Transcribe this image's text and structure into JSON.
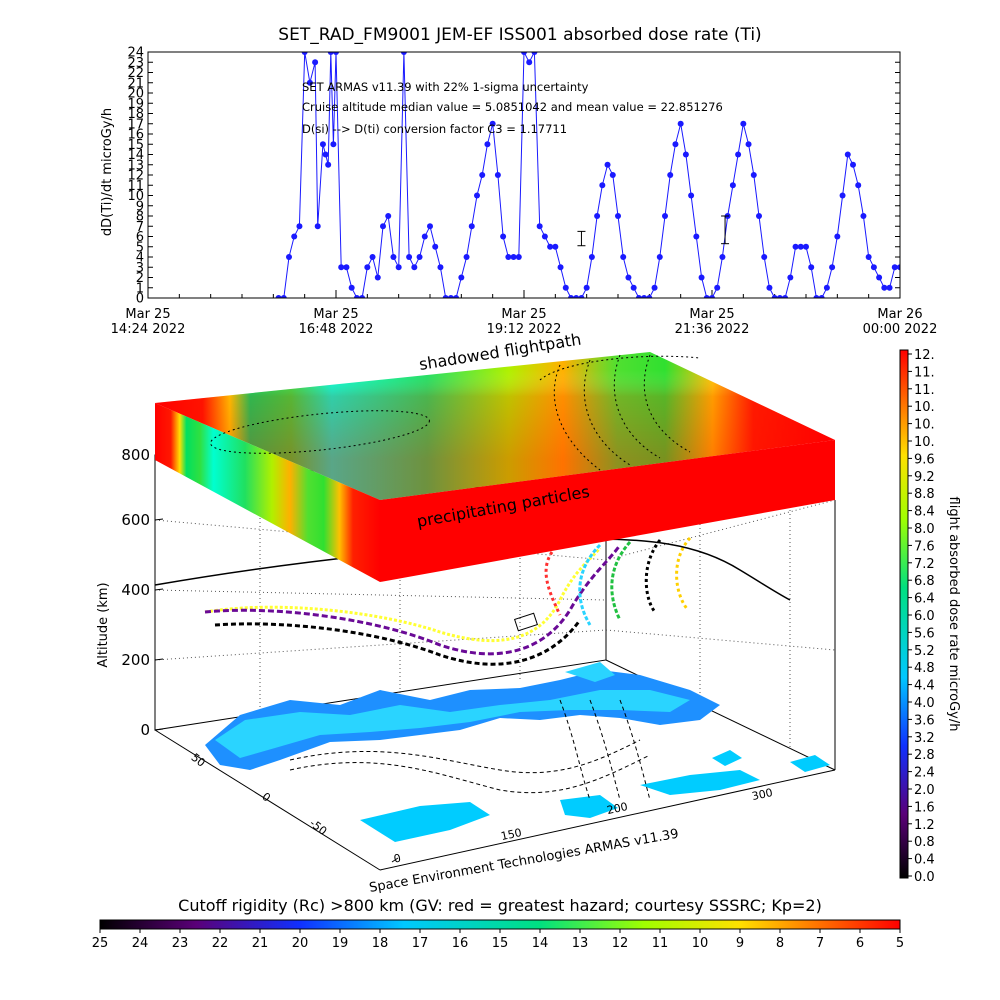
{
  "colors": {
    "series": "#1a1aff",
    "frame": "#000000",
    "background": "#ffffff"
  },
  "chart_data": [
    {
      "type": "line",
      "title": "SET_RAD_FM9001  JEM-EF ISS001 absorbed dose rate (Ti)",
      "ylabel": "dD(Ti)/dt microGy/h",
      "ylim": [
        0,
        24
      ],
      "yticks": [
        "0",
        "1",
        "2",
        "3",
        "4",
        "5",
        "6",
        "7",
        "8",
        "9",
        "10",
        "11",
        "12",
        "13",
        "14",
        "15",
        "16",
        "17",
        "18",
        "19",
        "20",
        "21",
        "22",
        "23",
        "24"
      ],
      "xticks": [
        {
          "line1": "Mar 25",
          "line2": "14:24 2022",
          "t": 0
        },
        {
          "line1": "Mar 25",
          "line2": "16:48 2022",
          "t": 144
        },
        {
          "line1": "Mar 25",
          "line2": "19:12 2022",
          "t": 288
        },
        {
          "line1": "Mar 25",
          "line2": "21:36 2022",
          "t": 432
        },
        {
          "line1": "Mar 26",
          "line2": "00:00 2022",
          "t": 576
        }
      ],
      "annotations": [
        "SET ARMAS v11.39 with 22% 1-sigma uncertainty",
        "Cruise altitude median value = 5.0851042 and mean value = 22.851276",
        "D(si) --> D(ti) conversion factor C3 = 1.17711"
      ],
      "series": [
        {
          "x": [
            100,
            104,
            108,
            112,
            116,
            120,
            124,
            128,
            130,
            134,
            136,
            138,
            140,
            142,
            144,
            148,
            152,
            156,
            160,
            164,
            168,
            172,
            176,
            180,
            184,
            188,
            192,
            196,
            200,
            204,
            208,
            212,
            216,
            220,
            224,
            228,
            232,
            236,
            240,
            244,
            248,
            252,
            256,
            260,
            264,
            268,
            272,
            276,
            280,
            284,
            288,
            292,
            296,
            300,
            304,
            308,
            312,
            316,
            320,
            324,
            328,
            332,
            336,
            340,
            344,
            348,
            352,
            356,
            360,
            364,
            368,
            372,
            376,
            380,
            384,
            388,
            392,
            396,
            400,
            404,
            408,
            412,
            416,
            420,
            424,
            428,
            432,
            436,
            440,
            444,
            448,
            452,
            456,
            460,
            464,
            468,
            472,
            476,
            480,
            484,
            488,
            492,
            496,
            500,
            504,
            508,
            512,
            516,
            520,
            524,
            528,
            532,
            536,
            540,
            544,
            548,
            552,
            556,
            560,
            564,
            568,
            572,
            576
          ],
          "y": [
            0,
            0,
            4,
            6,
            7,
            24,
            21,
            23,
            7,
            15,
            14,
            13,
            24,
            15,
            24,
            3,
            3,
            1,
            0,
            0,
            3,
            4,
            2,
            7,
            8,
            4,
            3,
            24,
            4,
            3,
            4,
            6,
            7,
            5,
            3,
            0,
            0,
            0,
            2,
            4,
            7,
            10,
            12,
            15,
            17,
            12,
            6,
            4,
            4,
            4,
            24,
            23,
            24,
            7,
            6,
            5,
            5,
            3,
            1,
            0,
            0,
            0,
            1,
            4,
            8,
            11,
            13,
            12,
            8,
            4,
            2,
            1,
            0,
            0,
            0,
            1,
            4,
            8,
            12,
            15,
            17,
            14,
            10,
            6,
            2,
            0,
            0,
            1,
            4,
            8,
            11,
            14,
            17,
            15,
            12,
            8,
            4,
            1,
            0,
            0,
            0,
            2,
            5,
            5,
            5,
            3,
            0,
            0,
            1,
            3,
            6,
            10,
            14,
            13,
            11,
            8,
            4,
            3,
            2,
            1,
            1,
            3,
            3
          ],
          "error_bars": [
            {
              "x": 332,
              "y": 5.5,
              "lo": 5.1,
              "hi": 6.5
            },
            {
              "x": 442,
              "y": 6.5,
              "lo": 5.3,
              "hi": 8.0
            }
          ]
        }
      ]
    },
    {
      "type": "surface3d",
      "zlabel": "Altitude (km)",
      "zticks": [
        "0",
        "200",
        "400",
        "600",
        "800"
      ],
      "floor_x_ticks": [
        "150",
        "200",
        "300"
      ],
      "floor_y_ticks": [
        "50",
        "0",
        "-50"
      ],
      "labels": {
        "shadowed": "shadowed flightpath",
        "precip": "precipitating particles",
        "credit": "Space Environment Technologies ARMAS v11.39"
      }
    },
    {
      "type": "colorbar",
      "ylabel": "flight absorbed dose rate microGy/h",
      "ticks": [
        "0.0",
        "0.4",
        "0.8",
        "1.2",
        "1.6",
        "2.0",
        "2.4",
        "2.8",
        "3.2",
        "3.6",
        "4.0",
        "4.4",
        "4.8",
        "5.2",
        "5.6",
        "6.0",
        "6.4",
        "6.8",
        "7.2",
        "7.6",
        "8.0",
        "8.4",
        "8.8",
        "9.2",
        "9.6",
        "10.",
        "10.",
        "10.",
        "11.",
        "11.",
        "12."
      ]
    },
    {
      "type": "colorbar",
      "title": "Cutoff rigidity (Rc) >800 km (GV: red = greatest hazard; courtesy SSSRC; Kp=2)",
      "ticks": [
        "25",
        "24",
        "23",
        "22",
        "21",
        "20",
        "19",
        "18",
        "17",
        "16",
        "15",
        "14",
        "13",
        "12",
        "11",
        "10",
        "9",
        "8",
        "7",
        "6",
        "5"
      ]
    }
  ]
}
